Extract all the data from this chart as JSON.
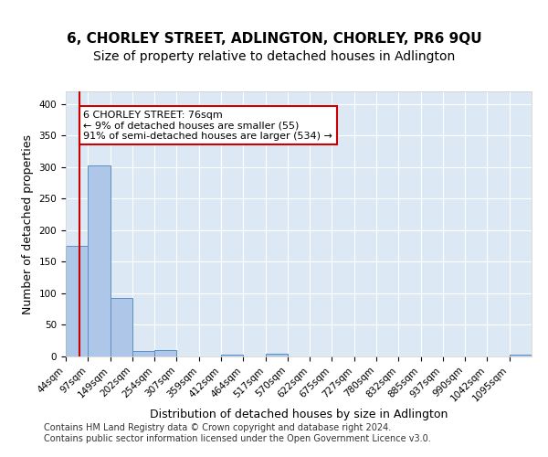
{
  "title": "6, CHORLEY STREET, ADLINGTON, CHORLEY, PR6 9QU",
  "subtitle": "Size of property relative to detached houses in Adlington",
  "xlabel": "Distribution of detached houses by size in Adlington",
  "ylabel": "Number of detached properties",
  "bin_labels": [
    "44sqm",
    "97sqm",
    "149sqm",
    "202sqm",
    "254sqm",
    "307sqm",
    "359sqm",
    "412sqm",
    "464sqm",
    "517sqm",
    "570sqm",
    "622sqm",
    "675sqm",
    "727sqm",
    "780sqm",
    "832sqm",
    "885sqm",
    "937sqm",
    "990sqm",
    "1042sqm",
    "1095sqm"
  ],
  "bin_edges": [
    44,
    97,
    149,
    202,
    254,
    307,
    359,
    412,
    464,
    517,
    570,
    622,
    675,
    727,
    780,
    832,
    885,
    937,
    990,
    1042,
    1095,
    1148
  ],
  "bar_values": [
    175,
    303,
    93,
    9,
    10,
    0,
    0,
    3,
    0,
    5,
    0,
    0,
    0,
    0,
    0,
    0,
    0,
    0,
    0,
    0,
    3
  ],
  "bar_color": "#aec6e8",
  "bar_edge_color": "#5a8fc2",
  "property_sqm": 76,
  "red_line_color": "#cc0000",
  "annotation_text": "6 CHORLEY STREET: 76sqm\n← 9% of detached houses are smaller (55)\n91% of semi-detached houses are larger (534) →",
  "annotation_box_color": "#ffffff",
  "annotation_box_edge_color": "#cc0000",
  "ylim": [
    0,
    420
  ],
  "yticks": [
    0,
    50,
    100,
    150,
    200,
    250,
    300,
    350,
    400
  ],
  "background_color": "#dce9f5",
  "footer_text": "Contains HM Land Registry data © Crown copyright and database right 2024.\nContains public sector information licensed under the Open Government Licence v3.0.",
  "title_fontsize": 11,
  "subtitle_fontsize": 10,
  "xlabel_fontsize": 9,
  "ylabel_fontsize": 9,
  "tick_fontsize": 7.5,
  "annotation_fontsize": 8,
  "footer_fontsize": 7
}
